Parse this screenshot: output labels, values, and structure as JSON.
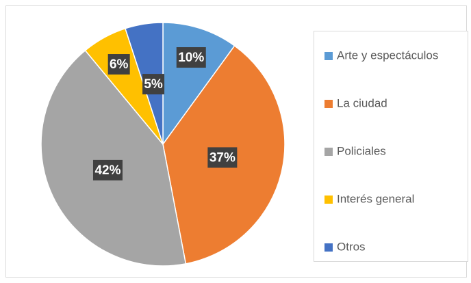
{
  "chart_data": {
    "type": "pie",
    "categories": [
      "Arte y espectáculos",
      "La ciudad",
      "Policiales",
      "Interés general",
      "Otros"
    ],
    "values": [
      10,
      37,
      42,
      6,
      5
    ],
    "value_labels": [
      "10%",
      "37%",
      "42%",
      "6%",
      "5%"
    ],
    "colors": [
      "#5b9bd5",
      "#ed7d31",
      "#a5a5a5",
      "#ffc000",
      "#4472c4"
    ],
    "legend": "right"
  }
}
